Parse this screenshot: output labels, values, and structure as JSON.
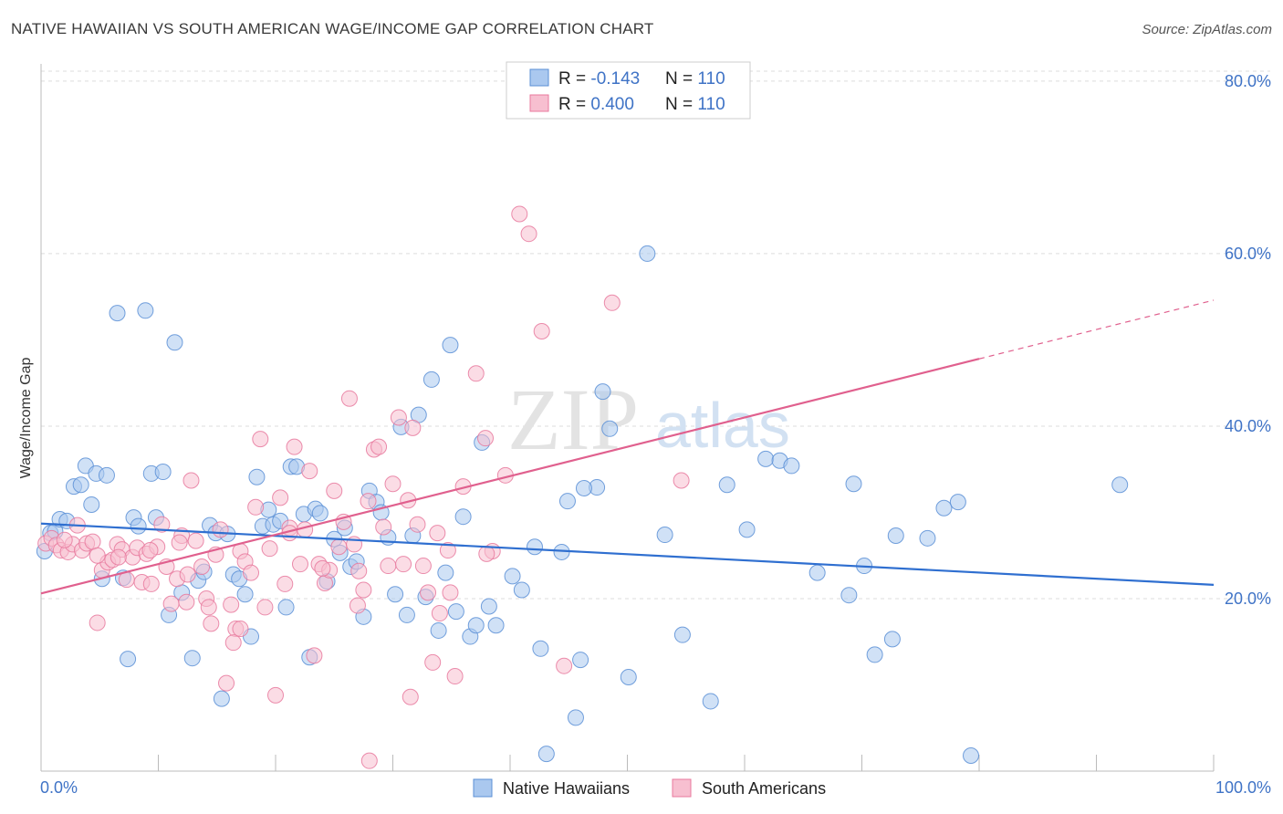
{
  "header": {
    "title": "NATIVE HAWAIIAN VS SOUTH AMERICAN WAGE/INCOME GAP CORRELATION CHART",
    "source": "Source: ZipAtlas.com"
  },
  "watermark": {
    "zip": "ZIP",
    "atlas": "atlas"
  },
  "legend_stats": [
    {
      "r_label": "R = ",
      "r_value": "-0.143",
      "n_label": "N = ",
      "n_value": "110",
      "color": "#5b8fd6"
    },
    {
      "r_label": "R = ",
      "r_value": "0.400",
      "n_label": "N = ",
      "n_value": "110",
      "color": "#e8799e"
    }
  ],
  "colors": {
    "blue_fill": "#aac8ef",
    "blue_stroke": "#5b8fd6",
    "blue_line": "#2f6fd0",
    "pink_fill": "#f7bfd0",
    "pink_stroke": "#e8799e",
    "pink_line": "#e0608e",
    "value_text": "#3f73c6",
    "grid": "#dddddd"
  },
  "chart_data": {
    "type": "scatter",
    "title": "NATIVE HAWAIIAN VS SOUTH AMERICAN WAGE/INCOME GAP CORRELATION CHART",
    "xlabel": "",
    "ylabel": "Wage/Income Gap",
    "xlim": [
      0,
      100
    ],
    "ylim": [
      0,
      82
    ],
    "x_tick_labels": [
      "0.0%",
      "100.0%"
    ],
    "y_ticks": [
      20,
      40,
      60,
      80
    ],
    "y_tick_labels": [
      "20.0%",
      "40.0%",
      "60.0%",
      "80.0%"
    ],
    "grid": true,
    "legend_position": "bottom",
    "series": [
      {
        "name": "Native Hawaiians",
        "r": -0.143,
        "n": 110,
        "trend": {
          "x": [
            0,
            100
          ],
          "y": [
            28.7,
            21.6
          ],
          "dashed_from_x": null
        },
        "points": [
          [
            0.3,
            25.5
          ],
          [
            0.8,
            27.6
          ],
          [
            1.2,
            27.8
          ],
          [
            1.6,
            29.2
          ],
          [
            2.2,
            29.0
          ],
          [
            2.8,
            33.0
          ],
          [
            3.4,
            33.2
          ],
          [
            3.8,
            35.4
          ],
          [
            4.3,
            30.9
          ],
          [
            4.7,
            34.5
          ],
          [
            5.2,
            22.3
          ],
          [
            5.6,
            34.3
          ],
          [
            6.5,
            53.1
          ],
          [
            7.0,
            22.4
          ],
          [
            7.4,
            13.0
          ],
          [
            7.9,
            29.4
          ],
          [
            8.3,
            28.4
          ],
          [
            8.9,
            53.4
          ],
          [
            9.4,
            34.5
          ],
          [
            9.8,
            29.4
          ],
          [
            10.4,
            34.7
          ],
          [
            10.9,
            18.1
          ],
          [
            11.4,
            49.7
          ],
          [
            12.0,
            20.7
          ],
          [
            12.9,
            13.1
          ],
          [
            13.4,
            22.1
          ],
          [
            13.9,
            23.1
          ],
          [
            14.4,
            28.5
          ],
          [
            14.9,
            27.6
          ],
          [
            15.4,
            8.4
          ],
          [
            15.9,
            27.5
          ],
          [
            16.4,
            22.8
          ],
          [
            16.9,
            22.3
          ],
          [
            17.4,
            20.5
          ],
          [
            17.9,
            15.6
          ],
          [
            18.4,
            34.1
          ],
          [
            18.9,
            28.4
          ],
          [
            19.4,
            30.3
          ],
          [
            19.8,
            28.6
          ],
          [
            20.4,
            29.0
          ],
          [
            20.9,
            19.0
          ],
          [
            21.3,
            35.3
          ],
          [
            21.8,
            35.3
          ],
          [
            22.4,
            29.8
          ],
          [
            22.9,
            13.2
          ],
          [
            23.4,
            30.4
          ],
          [
            23.8,
            29.9
          ],
          [
            24.4,
            22.0
          ],
          [
            25.0,
            26.9
          ],
          [
            25.5,
            25.3
          ],
          [
            25.9,
            28.2
          ],
          [
            26.4,
            23.7
          ],
          [
            26.9,
            24.3
          ],
          [
            27.5,
            17.9
          ],
          [
            28.0,
            32.5
          ],
          [
            28.6,
            31.2
          ],
          [
            29.0,
            30.0
          ],
          [
            29.6,
            27.1
          ],
          [
            30.2,
            20.5
          ],
          [
            30.7,
            39.9
          ],
          [
            31.2,
            18.1
          ],
          [
            31.7,
            27.3
          ],
          [
            32.2,
            41.3
          ],
          [
            32.8,
            20.2
          ],
          [
            33.3,
            45.4
          ],
          [
            33.9,
            16.3
          ],
          [
            34.5,
            23.0
          ],
          [
            34.9,
            49.4
          ],
          [
            35.4,
            18.5
          ],
          [
            36.0,
            29.5
          ],
          [
            36.6,
            15.6
          ],
          [
            37.1,
            16.9
          ],
          [
            37.6,
            38.1
          ],
          [
            38.2,
            19.1
          ],
          [
            38.8,
            16.9
          ],
          [
            40.2,
            22.6
          ],
          [
            41.0,
            21.0
          ],
          [
            42.1,
            26.0
          ],
          [
            42.6,
            14.2
          ],
          [
            43.1,
            2.0
          ],
          [
            44.4,
            25.4
          ],
          [
            44.9,
            31.3
          ],
          [
            45.6,
            6.2
          ],
          [
            46.0,
            12.9
          ],
          [
            47.4,
            32.9
          ],
          [
            47.9,
            44.0
          ],
          [
            48.5,
            39.7
          ],
          [
            50.1,
            10.9
          ],
          [
            51.7,
            60.0
          ],
          [
            53.2,
            27.4
          ],
          [
            54.7,
            15.8
          ],
          [
            57.1,
            8.1
          ],
          [
            58.5,
            33.2
          ],
          [
            60.2,
            28.0
          ],
          [
            61.8,
            36.2
          ],
          [
            63.0,
            36.0
          ],
          [
            64.0,
            35.4
          ],
          [
            66.2,
            23.0
          ],
          [
            68.9,
            20.4
          ],
          [
            69.3,
            33.3
          ],
          [
            70.2,
            23.8
          ],
          [
            71.1,
            13.5
          ],
          [
            72.6,
            15.3
          ],
          [
            72.9,
            27.3
          ],
          [
            75.6,
            27.0
          ],
          [
            77.0,
            30.5
          ],
          [
            78.2,
            31.2
          ],
          [
            79.3,
            1.8
          ],
          [
            92.0,
            33.2
          ],
          [
            46.3,
            32.8
          ]
        ]
      },
      {
        "name": "South Americans",
        "r": 0.4,
        "n": 110,
        "trend": {
          "x": [
            0,
            100
          ],
          "y": [
            20.6,
            54.6
          ],
          "dashed_from_x": 80
        },
        "points": [
          [
            0.4,
            26.4
          ],
          [
            0.9,
            27.0
          ],
          [
            1.3,
            26.2
          ],
          [
            1.7,
            25.6
          ],
          [
            2.3,
            25.4
          ],
          [
            2.7,
            26.3
          ],
          [
            3.1,
            28.5
          ],
          [
            3.5,
            25.6
          ],
          [
            3.9,
            26.4
          ],
          [
            4.4,
            26.6
          ],
          [
            4.8,
            17.2
          ],
          [
            5.2,
            23.3
          ],
          [
            5.7,
            24.2
          ],
          [
            6.1,
            24.5
          ],
          [
            6.5,
            26.3
          ],
          [
            6.9,
            25.7
          ],
          [
            7.3,
            22.2
          ],
          [
            7.8,
            24.8
          ],
          [
            8.2,
            25.9
          ],
          [
            8.6,
            21.9
          ],
          [
            9.0,
            25.2
          ],
          [
            9.4,
            21.7
          ],
          [
            9.9,
            26.0
          ],
          [
            10.3,
            28.6
          ],
          [
            10.7,
            23.7
          ],
          [
            11.1,
            19.4
          ],
          [
            11.6,
            22.3
          ],
          [
            12.0,
            27.3
          ],
          [
            12.4,
            19.6
          ],
          [
            12.8,
            33.7
          ],
          [
            13.2,
            26.7
          ],
          [
            13.7,
            23.7
          ],
          [
            14.1,
            20.0
          ],
          [
            14.5,
            17.1
          ],
          [
            14.9,
            25.1
          ],
          [
            15.3,
            28.0
          ],
          [
            15.8,
            10.2
          ],
          [
            16.2,
            19.3
          ],
          [
            16.6,
            16.5
          ],
          [
            17.0,
            25.5
          ],
          [
            17.4,
            24.3
          ],
          [
            17.9,
            23.0
          ],
          [
            18.3,
            30.6
          ],
          [
            18.7,
            38.5
          ],
          [
            19.1,
            19.0
          ],
          [
            19.5,
            25.8
          ],
          [
            20.0,
            8.8
          ],
          [
            20.4,
            31.7
          ],
          [
            20.8,
            21.7
          ],
          [
            21.2,
            28.2
          ],
          [
            21.6,
            37.6
          ],
          [
            22.1,
            24.0
          ],
          [
            22.5,
            28.0
          ],
          [
            22.9,
            34.8
          ],
          [
            23.3,
            13.4
          ],
          [
            23.7,
            24.0
          ],
          [
            24.2,
            21.8
          ],
          [
            24.6,
            23.3
          ],
          [
            25.0,
            32.5
          ],
          [
            25.4,
            26.0
          ],
          [
            25.8,
            28.9
          ],
          [
            26.3,
            43.2
          ],
          [
            26.7,
            26.3
          ],
          [
            27.1,
            23.2
          ],
          [
            27.5,
            21.0
          ],
          [
            27.9,
            31.3
          ],
          [
            28.4,
            37.3
          ],
          [
            28.8,
            37.6
          ],
          [
            29.2,
            28.3
          ],
          [
            29.6,
            23.8
          ],
          [
            30.0,
            33.3
          ],
          [
            30.5,
            41.0
          ],
          [
            30.9,
            24.0
          ],
          [
            31.3,
            31.4
          ],
          [
            31.7,
            39.8
          ],
          [
            32.1,
            28.6
          ],
          [
            32.6,
            23.8
          ],
          [
            33.0,
            20.7
          ],
          [
            33.4,
            12.6
          ],
          [
            34.0,
            18.3
          ],
          [
            34.7,
            25.6
          ],
          [
            35.3,
            11.0
          ],
          [
            36.0,
            33.0
          ],
          [
            37.1,
            46.1
          ],
          [
            37.9,
            38.6
          ],
          [
            38.5,
            25.5
          ],
          [
            39.6,
            34.3
          ],
          [
            40.8,
            64.6
          ],
          [
            41.6,
            62.3
          ],
          [
            42.7,
            51.0
          ],
          [
            48.7,
            54.3
          ],
          [
            54.6,
            33.7
          ],
          [
            31.5,
            8.6
          ],
          [
            34.9,
            20.7
          ],
          [
            28.0,
            1.2
          ],
          [
            44.6,
            12.2
          ],
          [
            16.4,
            14.9
          ],
          [
            12.5,
            22.8
          ],
          [
            4.8,
            25.0
          ],
          [
            2.0,
            26.8
          ],
          [
            6.6,
            24.8
          ],
          [
            11.8,
            26.5
          ],
          [
            17.0,
            16.5
          ],
          [
            21.2,
            27.6
          ],
          [
            24.0,
            23.5
          ],
          [
            27.0,
            19.2
          ],
          [
            33.8,
            27.6
          ],
          [
            38.0,
            25.2
          ],
          [
            9.3,
            25.6
          ],
          [
            14.3,
            19.0
          ]
        ]
      }
    ]
  }
}
